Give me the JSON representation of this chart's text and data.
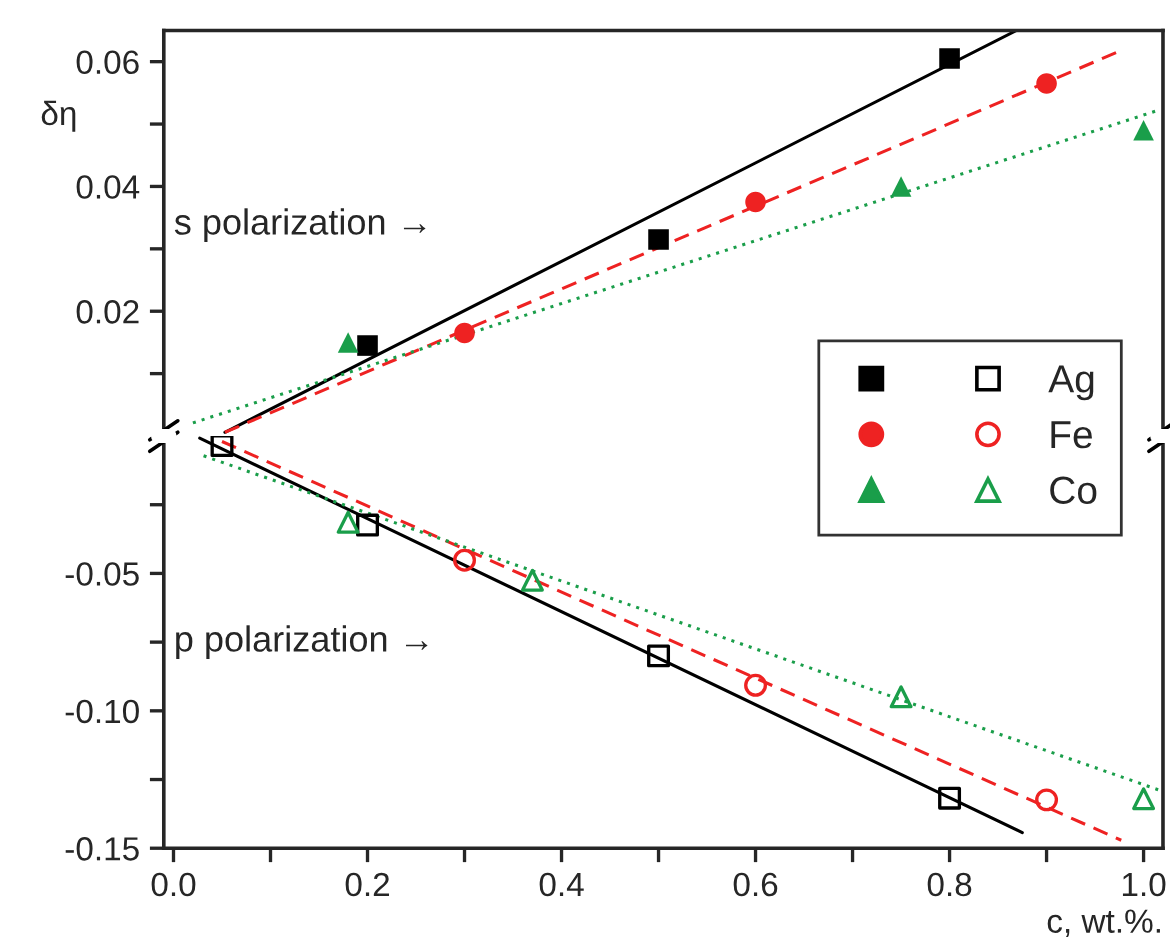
{
  "chart_data": [
    {
      "type": "scatter",
      "ylabel": "δη",
      "annotations": [
        "s polarization →"
      ],
      "legend": "right",
      "tick_labels": "y",
      "xlim": [
        -0.01,
        1.02
      ],
      "ylim": [
        0.0,
        0.065
      ],
      "yticks": [
        {
          "value": 0.01,
          "label": null
        },
        0.02,
        {
          "value": 0.03,
          "label": null
        },
        0.04,
        {
          "value": 0.05,
          "label": null
        },
        0.06
      ],
      "series": [
        {
          "name": "Ag",
          "color": "#000000",
          "marker": "square",
          "x": [
            0.2,
            0.5,
            0.8
          ],
          "values": [
            0.0145,
            0.0315,
            0.0605
          ]
        },
        {
          "name": "Fe",
          "color": "#ee2222",
          "marker": "circle",
          "x": [
            0.3,
            0.6,
            0.9
          ],
          "values": [
            0.0165,
            0.0375,
            0.0565
          ]
        },
        {
          "name": "Co",
          "color": "#1a9e4a",
          "marker": "triangle",
          "x": [
            0.18,
            0.75,
            1.0
          ],
          "values": [
            0.015,
            0.04,
            0.049
          ]
        },
        {
          "type": "line",
          "color": "#000000",
          "line_style": "solid",
          "x": [
            0.053,
            0.869
          ],
          "values": [
            0.0006,
            0.065
          ]
        },
        {
          "type": "line",
          "color": "#ee2222",
          "line_style": "dashed",
          "x": [
            0.053,
            0.977
          ],
          "values": [
            0.0006,
            0.0618
          ]
        },
        {
          "type": "line",
          "color": "#1a9e4a",
          "line_style": "dotted",
          "x": [
            0.02,
            1.015
          ],
          "values": [
            0.0021,
            0.0522
          ]
        }
      ]
    },
    {
      "type": "scatter",
      "xlabel": "c, wt.%.",
      "annotations": [
        "p polarization →"
      ],
      "xlim": [
        -0.01,
        1.02
      ],
      "ylim": [
        -0.15,
        0.0
      ],
      "xticks": [
        {
          "value": 0.0,
          "label": "0.0"
        },
        {
          "value": 0.1,
          "label": null
        },
        {
          "value": 0.2,
          "label": "0.2"
        },
        {
          "value": 0.3,
          "label": null
        },
        {
          "value": 0.4,
          "label": "0.4"
        },
        {
          "value": 0.5,
          "label": null
        },
        {
          "value": 0.6,
          "label": "0.6"
        },
        {
          "value": 0.7,
          "label": null
        },
        {
          "value": 0.8,
          "label": "0.8"
        },
        {
          "value": 0.9,
          "label": null
        },
        {
          "value": 1.0,
          "label": "1.0"
        }
      ],
      "yticks": [
        -0.15,
        {
          "value": -0.125,
          "label": null
        },
        {
          "value": -0.1,
          "label": "-0.10"
        },
        {
          "value": -0.075,
          "label": null
        },
        -0.05,
        {
          "value": -0.025,
          "label": null
        }
      ],
      "series": [
        {
          "name": "Ag",
          "color": "#000000",
          "marker": "square",
          "x": [
            0.05,
            0.2,
            0.5,
            0.8
          ],
          "values": [
            -0.0035,
            -0.0324,
            -0.08,
            -0.1318
          ]
        },
        {
          "name": "Fe",
          "color": "#ee2222",
          "marker": "circle",
          "x": [
            0.3,
            0.6,
            0.9
          ],
          "values": [
            -0.0452,
            -0.0907,
            -0.1324
          ]
        },
        {
          "name": "Co",
          "color": "#1a9e4a",
          "marker": "triangle",
          "x": [
            0.18,
            0.37,
            0.75,
            1.0
          ],
          "values": [
            -0.0314,
            -0.0525,
            -0.0949,
            -0.132
          ]
        },
        {
          "type": "line",
          "color": "#000000",
          "line_style": "solid",
          "x": [
            0.027,
            0.875
          ],
          "values": [
            -0.0008,
            -0.1443
          ]
        },
        {
          "type": "line",
          "color": "#ee2222",
          "line_style": "dashed",
          "x": [
            0.05,
            0.977
          ],
          "values": [
            -0.002,
            -0.1471
          ]
        },
        {
          "type": "line",
          "color": "#1a9e4a",
          "line_style": "dotted",
          "x": [
            0.031,
            1.015
          ],
          "values": [
            -0.0072,
            -0.1287
          ]
        }
      ]
    }
  ]
}
